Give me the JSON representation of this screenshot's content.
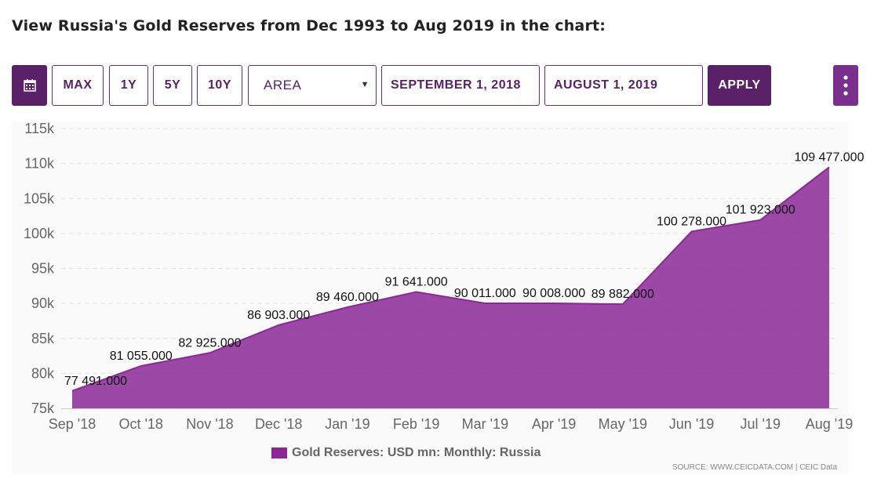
{
  "heading": "View Russia's Gold Reserves from Dec 1993 to Aug 2019 in the chart:",
  "toolbar": {
    "calendar_icon": "calendar-icon",
    "ranges": [
      "MAX",
      "1Y",
      "5Y",
      "10Y"
    ],
    "chart_type": "AREA",
    "start_date": "SEPTEMBER 1, 2018",
    "end_date": "AUGUST 1, 2019",
    "apply_label": "APPLY",
    "menu_icon": "kebab-menu-icon",
    "accent": "#5a2168"
  },
  "chart_data": {
    "type": "area",
    "categories": [
      "Sep '18",
      "Oct '18",
      "Nov '18",
      "Dec '18",
      "Jan '19",
      "Feb '19",
      "Mar '19",
      "Apr '19",
      "May '19",
      "Jun '19",
      "Jul '19",
      "Aug '19"
    ],
    "series": [
      {
        "name": "Gold Reserves: USD mn: Monthly: Russia",
        "values": [
          77491.0,
          81055.0,
          82925.0,
          86903.0,
          89460.0,
          91641.0,
          90011.0,
          90008.0,
          89882.0,
          100278.0,
          101923.0,
          109477.0
        ],
        "labels": [
          "77 491.000",
          "81 055.000",
          "82 925.000",
          "86 903.000",
          "89 460.000",
          "91 641.000",
          "90 011.000",
          "90 008.000",
          "89 882.000",
          "100 278.000",
          "101 923.000",
          "109 477.000"
        ],
        "color": "#8b2896"
      }
    ],
    "y_ticks": [
      "75k",
      "80k",
      "85k",
      "90k",
      "95k",
      "100k",
      "105k",
      "110k",
      "115k"
    ],
    "ylim": [
      75000,
      115000
    ],
    "grid": true,
    "legend_position": "bottom"
  },
  "source": "SOURCE: WWW.CEICDATA.COM | CEIC Data"
}
